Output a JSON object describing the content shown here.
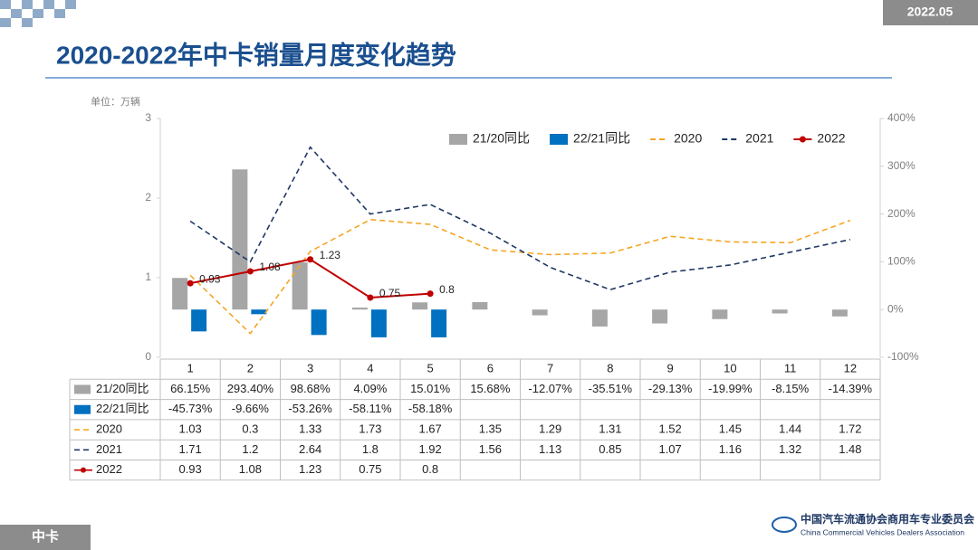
{
  "badge": "2022.05",
  "footer": "中卡",
  "logo": {
    "cn": "中国汽车流通协会商用车专业委员会",
    "en": "China Commercial Vehicles Dealers Association"
  },
  "chart_data": {
    "type": "combo",
    "title": "2020-2022年中卡销量月度变化趋势",
    "y_label": "单位：万辆",
    "categories": [
      "1",
      "2",
      "3",
      "4",
      "5",
      "6",
      "7",
      "8",
      "9",
      "10",
      "11",
      "12"
    ],
    "ylim": [
      0,
      3
    ],
    "yticks": [
      0,
      1,
      2,
      3
    ],
    "y2lim": [
      -100,
      400
    ],
    "y2ticks": [
      {
        "value": -100,
        "label": "-100%"
      },
      {
        "value": 0,
        "label": "0%"
      },
      {
        "value": 100,
        "label": "100%"
      },
      {
        "value": 200,
        "label": "200%"
      },
      {
        "value": 300,
        "label": "300%"
      },
      {
        "value": 400,
        "label": "400%"
      }
    ],
    "legend": "top-right",
    "grid": false,
    "series": [
      {
        "name": "21/20同比",
        "type": "bar",
        "axis": "y2",
        "color": "#a6a6a6",
        "values": [
          66.15,
          293.4,
          98.68,
          4.09,
          15.01,
          15.68,
          -12.07,
          -35.51,
          -29.13,
          -19.99,
          -8.15,
          -14.39
        ],
        "value_labels": [
          "66.15%",
          "293.40%",
          "98.68%",
          "4.09%",
          "15.01%",
          "15.68%",
          "-12.07%",
          "-35.51%",
          "-29.13%",
          "-19.99%",
          "-8.15%",
          "-14.39%"
        ]
      },
      {
        "name": "22/21同比",
        "type": "bar",
        "axis": "y2",
        "color": "#0070c0",
        "values": [
          -45.73,
          -9.66,
          -53.26,
          -58.11,
          -58.18,
          null,
          null,
          null,
          null,
          null,
          null,
          null
        ],
        "value_labels": [
          "-45.73%",
          "-9.66%",
          "-53.26%",
          "-58.11%",
          "-58.18%",
          null,
          null,
          null,
          null,
          null,
          null,
          null
        ]
      },
      {
        "name": "2020",
        "type": "line",
        "dashed": true,
        "color": "#f5a623",
        "values": [
          1.03,
          0.3,
          1.33,
          1.73,
          1.67,
          1.35,
          1.29,
          1.31,
          1.52,
          1.45,
          1.44,
          1.72
        ]
      },
      {
        "name": "2021",
        "type": "line",
        "dashed": true,
        "color": "#1f3864",
        "values": [
          1.71,
          1.2,
          2.64,
          1.8,
          1.92,
          1.56,
          1.13,
          0.85,
          1.07,
          1.16,
          1.32,
          1.48
        ]
      },
      {
        "name": "2022",
        "type": "line",
        "dashed": false,
        "markers": true,
        "color": "#c00000",
        "values": [
          0.93,
          1.08,
          1.23,
          0.75,
          0.8,
          null,
          null,
          null,
          null,
          null,
          null,
          null
        ]
      }
    ]
  }
}
